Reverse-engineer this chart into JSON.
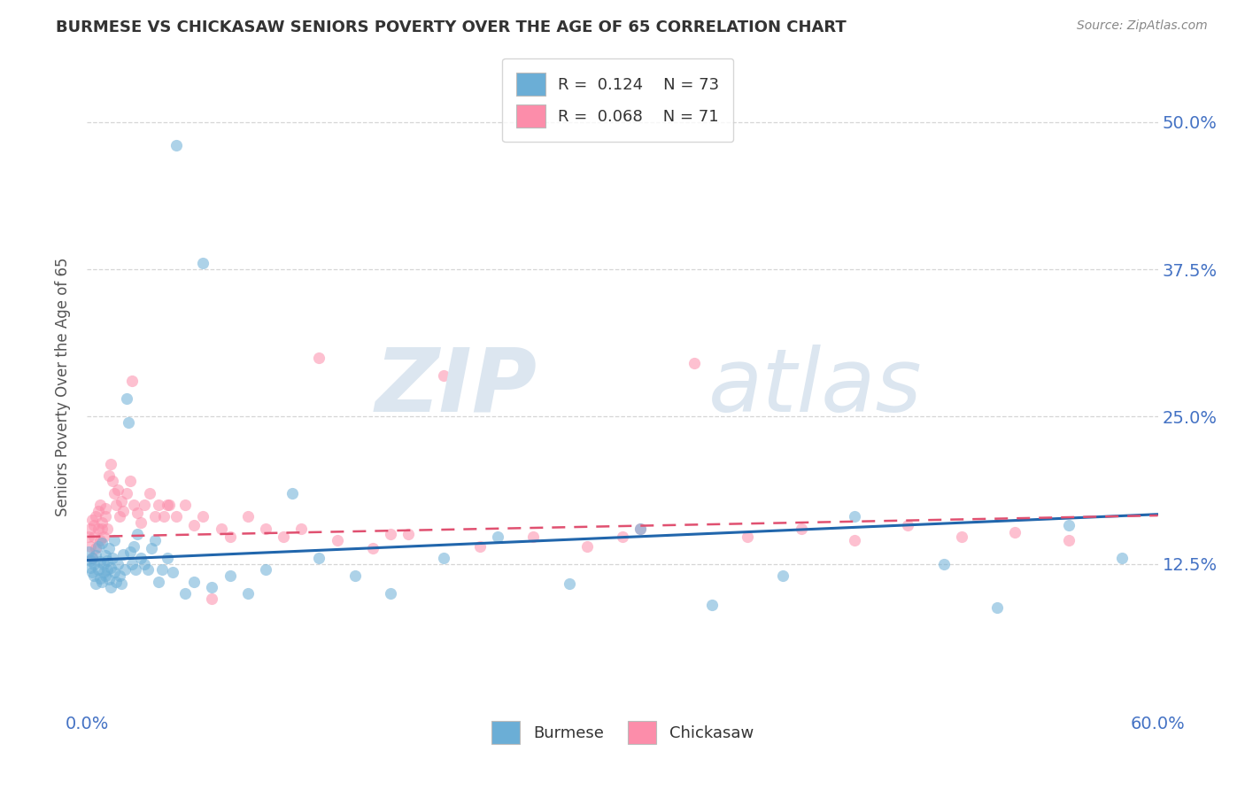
{
  "title": "BURMESE VS CHICKASAW SENIORS POVERTY OVER THE AGE OF 65 CORRELATION CHART",
  "source": "Source: ZipAtlas.com",
  "ylabel": "Seniors Poverty Over the Age of 65",
  "xlim": [
    0.0,
    0.6
  ],
  "ylim": [
    0.0,
    0.55
  ],
  "yticks": [
    0.125,
    0.25,
    0.375,
    0.5
  ],
  "ytick_labels": [
    "12.5%",
    "25.0%",
    "37.5%",
    "50.0%"
  ],
  "burmese_R": "0.124",
  "burmese_N": "73",
  "chickasaw_R": "0.068",
  "chickasaw_N": "71",
  "burmese_color": "#6baed6",
  "chickasaw_color": "#fc8daa",
  "burmese_line_color": "#2166ac",
  "chickasaw_line_color": "#e05070",
  "background_color": "#ffffff",
  "tick_color": "#4472c4",
  "grid_color": "#cccccc",
  "title_color": "#333333",
  "source_color": "#888888",
  "ylabel_color": "#555555",
  "watermark_color": "#dce6f0",
  "legend_text_color": "#333333",
  "legend_val_color": "#4472c4",
  "burmese_x": [
    0.001,
    0.002,
    0.002,
    0.003,
    0.003,
    0.004,
    0.004,
    0.005,
    0.005,
    0.006,
    0.006,
    0.007,
    0.007,
    0.008,
    0.008,
    0.009,
    0.009,
    0.01,
    0.01,
    0.011,
    0.011,
    0.012,
    0.012,
    0.013,
    0.013,
    0.014,
    0.015,
    0.015,
    0.016,
    0.017,
    0.018,
    0.019,
    0.02,
    0.021,
    0.022,
    0.023,
    0.024,
    0.025,
    0.026,
    0.027,
    0.028,
    0.03,
    0.032,
    0.034,
    0.036,
    0.038,
    0.04,
    0.042,
    0.045,
    0.048,
    0.05,
    0.055,
    0.06,
    0.065,
    0.07,
    0.08,
    0.09,
    0.1,
    0.115,
    0.13,
    0.15,
    0.17,
    0.2,
    0.23,
    0.27,
    0.31,
    0.35,
    0.39,
    0.43,
    0.48,
    0.51,
    0.55,
    0.58
  ],
  "burmese_y": [
    0.135,
    0.128,
    0.122,
    0.118,
    0.13,
    0.125,
    0.115,
    0.132,
    0.108,
    0.12,
    0.14,
    0.113,
    0.127,
    0.11,
    0.143,
    0.118,
    0.125,
    0.115,
    0.132,
    0.12,
    0.128,
    0.112,
    0.138,
    0.122,
    0.105,
    0.13,
    0.118,
    0.145,
    0.11,
    0.125,
    0.115,
    0.108,
    0.133,
    0.12,
    0.265,
    0.245,
    0.135,
    0.125,
    0.14,
    0.12,
    0.15,
    0.13,
    0.125,
    0.12,
    0.138,
    0.145,
    0.11,
    0.12,
    0.13,
    0.118,
    0.48,
    0.1,
    0.11,
    0.38,
    0.105,
    0.115,
    0.1,
    0.12,
    0.185,
    0.13,
    0.115,
    0.1,
    0.13,
    0.148,
    0.108,
    0.155,
    0.09,
    0.115,
    0.165,
    0.125,
    0.088,
    0.158,
    0.13
  ],
  "chickasaw_x": [
    0.001,
    0.002,
    0.002,
    0.003,
    0.003,
    0.004,
    0.004,
    0.005,
    0.005,
    0.006,
    0.006,
    0.007,
    0.007,
    0.008,
    0.008,
    0.009,
    0.01,
    0.01,
    0.011,
    0.012,
    0.013,
    0.014,
    0.015,
    0.016,
    0.017,
    0.018,
    0.019,
    0.02,
    0.022,
    0.024,
    0.026,
    0.028,
    0.03,
    0.032,
    0.035,
    0.038,
    0.04,
    0.043,
    0.046,
    0.05,
    0.055,
    0.06,
    0.065,
    0.07,
    0.08,
    0.09,
    0.1,
    0.11,
    0.12,
    0.14,
    0.16,
    0.18,
    0.2,
    0.22,
    0.25,
    0.28,
    0.31,
    0.34,
    0.37,
    0.4,
    0.43,
    0.46,
    0.49,
    0.52,
    0.55,
    0.025,
    0.045,
    0.075,
    0.13,
    0.17,
    0.3
  ],
  "chickasaw_y": [
    0.148,
    0.155,
    0.14,
    0.162,
    0.13,
    0.158,
    0.148,
    0.165,
    0.138,
    0.155,
    0.17,
    0.145,
    0.175,
    0.155,
    0.16,
    0.148,
    0.165,
    0.172,
    0.155,
    0.2,
    0.21,
    0.195,
    0.185,
    0.175,
    0.188,
    0.165,
    0.178,
    0.17,
    0.185,
    0.195,
    0.175,
    0.168,
    0.16,
    0.175,
    0.185,
    0.165,
    0.175,
    0.165,
    0.175,
    0.165,
    0.175,
    0.158,
    0.165,
    0.095,
    0.148,
    0.165,
    0.155,
    0.148,
    0.155,
    0.145,
    0.138,
    0.15,
    0.285,
    0.14,
    0.148,
    0.14,
    0.155,
    0.295,
    0.148,
    0.155,
    0.145,
    0.158,
    0.148,
    0.152,
    0.145,
    0.28,
    0.175,
    0.155,
    0.3,
    0.15,
    0.148
  ]
}
